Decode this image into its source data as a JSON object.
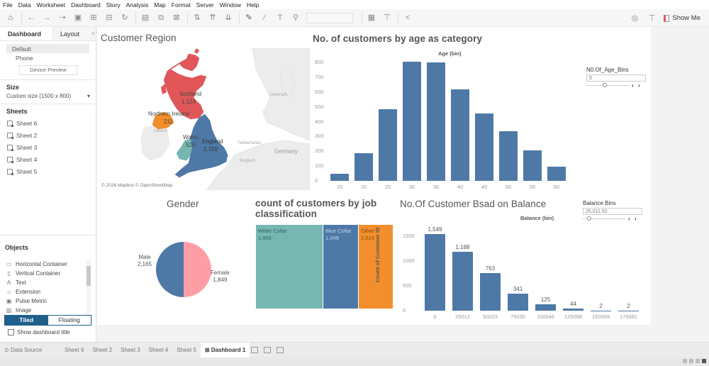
{
  "menu": [
    "File",
    "Data",
    "Worksheet",
    "Dashboard",
    "Story",
    "Analysis",
    "Map",
    "Format",
    "Server",
    "Window",
    "Help"
  ],
  "toolbar": {
    "icons": [
      "home-icon",
      "undo-icon",
      "redo-icon",
      "redo-dropdown-icon",
      "save-icon",
      "new-datasource-icon",
      "pause-icon",
      "refresh-icon",
      "new-sheet-icon",
      "duplicate-icon",
      "clear-icon",
      "swap-icon",
      "sort-asc-icon",
      "sort-desc-icon",
      "highlight-icon",
      "group-icon",
      "label-icon",
      "pin-icon",
      "fit-icon",
      "presentation-icon",
      "share-icon"
    ],
    "show_me_label": "Show Me"
  },
  "sidebar": {
    "tabs": {
      "dashboard": "Dashboard",
      "layout": "Layout",
      "collapse": "<"
    },
    "devices": {
      "default": "Default",
      "phone": "Phone",
      "preview_button": "Device Preview"
    },
    "size": {
      "heading": "Size",
      "value": "Custom size (1500 x 800)",
      "caret": "▾"
    },
    "sheets": {
      "heading": "Sheets",
      "items": [
        "Sheet 6",
        "Sheet 2",
        "Sheet 3",
        "Sheet 4",
        "Sheet 5"
      ]
    },
    "objects": {
      "heading": "Objects",
      "items": [
        {
          "label": "Horizontal Container",
          "icon": "horizontal-container-icon",
          "glyph": "▭"
        },
        {
          "label": "Vertical Container",
          "icon": "vertical-container-icon",
          "glyph": "▯"
        },
        {
          "label": "Text",
          "icon": "text-icon",
          "glyph": "A"
        },
        {
          "label": "Extension",
          "icon": "extension-icon",
          "glyph": "⌂"
        },
        {
          "label": "Pulse Metric",
          "icon": "pulse-metric-icon",
          "glyph": "▣"
        },
        {
          "label": "Image",
          "icon": "image-icon",
          "glyph": "▨"
        }
      ],
      "tiled": "Tiled",
      "floating": "Floating",
      "show_title": "Show dashboard title"
    }
  },
  "dashboard": {
    "map": {
      "title": "Customer Region",
      "attribution": "© 2026 Mapbox © OpenStreetMap",
      "regions": [
        {
          "name": "Scotland",
          "value": "1,124",
          "color": "#e15759"
        },
        {
          "name": "Northern Ireland",
          "value": "211",
          "color": "#f28e2b"
        },
        {
          "name": "Wales",
          "value": "520",
          "color": "#76b7b2"
        },
        {
          "name": "England",
          "value": "2,159",
          "color": "#4e79a7"
        }
      ],
      "basemap_labels": [
        "Ireland",
        "Denmark",
        "Netherlands",
        "Belgium",
        "Germany"
      ]
    },
    "age_param": {
      "title": "N0.Of_Age_Bins",
      "value": "5",
      "arrows": "‹ ›"
    },
    "balance_param": {
      "title": "Balance Bins",
      "value": "25,011.52",
      "arrows": "‹ ›"
    }
  },
  "chart_data": [
    {
      "type": "bar",
      "title": "No. of customers by age as category",
      "xlabel": "Age (bin)",
      "ylabel": "",
      "categories": [
        "15",
        "20",
        "25",
        "30",
        "35",
        "40",
        "45",
        "50",
        "55",
        "60"
      ],
      "values": [
        48,
        185,
        483,
        805,
        800,
        620,
        455,
        335,
        205,
        95
      ],
      "yticks": [
        "800",
        "700",
        "600",
        "500",
        "400",
        "300",
        "200",
        "100",
        "0"
      ],
      "ylim": [
        0,
        800
      ],
      "color": "#4e79a7"
    },
    {
      "type": "pie",
      "title": "Gender",
      "categories": [
        "Male",
        "Female"
      ],
      "values": [
        2165,
        1849
      ],
      "labels": [
        "2,165",
        "1,849"
      ],
      "colors": [
        "#4e79a7",
        "#ff9da7"
      ]
    },
    {
      "type": "treemap",
      "title": "count of customers by job classification",
      "categories": [
        "White Collar",
        "Blue Collar",
        "Other"
      ],
      "values": [
        1955,
        1049,
        1010
      ],
      "labels": [
        "1,955",
        "1,049",
        "1,010"
      ],
      "colors": [
        "#76b7b2",
        "#4e79a7",
        "#f28e2b"
      ]
    },
    {
      "type": "bar",
      "title": "No.Of Customer Bsad on Balance",
      "xlabel": "Balance (bin)",
      "ylabel": "Count of Customer ID",
      "categories": [
        "0",
        "25012",
        "50023",
        "75035",
        "100046",
        "125058",
        "150069",
        "175081"
      ],
      "values": [
        1549,
        1188,
        763,
        341,
        125,
        44,
        2,
        2
      ],
      "labels": [
        "1,549",
        "1,188",
        "763",
        "341",
        "125",
        "44",
        "2",
        "2"
      ],
      "yticks": [
        "1500",
        "1000",
        "500",
        "0"
      ],
      "ylim": [
        0,
        1600
      ],
      "color": "#4e79a7"
    }
  ],
  "tabs": {
    "data_source": "Data Source",
    "sheets": [
      "Sheet 6",
      "Sheet 2",
      "Sheet 3",
      "Sheet 4",
      "Sheet 5"
    ],
    "active": "Dashboard 1"
  }
}
